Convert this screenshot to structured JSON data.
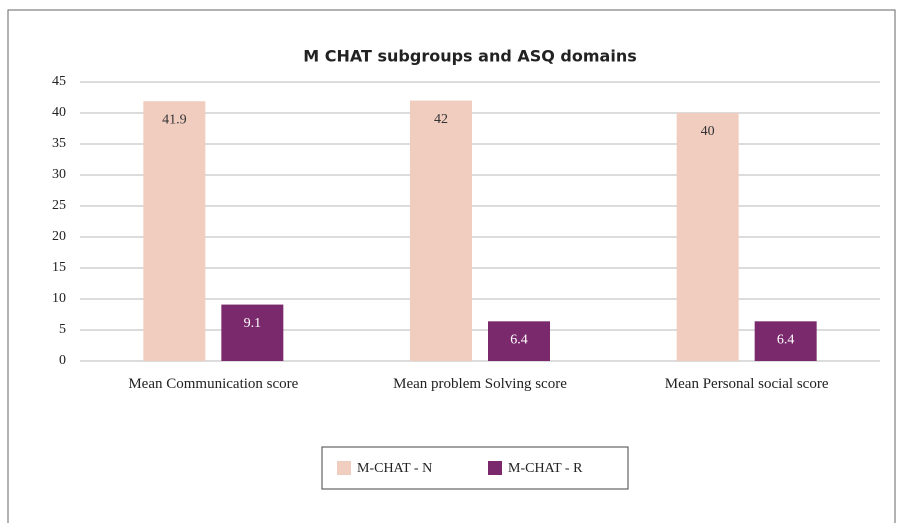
{
  "chart_data": {
    "type": "bar",
    "title": "M CHAT subgroups and ASQ domains",
    "categories": [
      "Mean Communication score",
      "Mean problem Solving score",
      "Mean Personal social score"
    ],
    "series": [
      {
        "name": "M-CHAT - N",
        "color": "#f1cdc0",
        "values": [
          41.9,
          42,
          40
        ]
      },
      {
        "name": "M-CHAT - R",
        "color": "#7a2a6c",
        "values": [
          9.1,
          6.4,
          6.4
        ]
      }
    ],
    "ylim": [
      0,
      45
    ],
    "yticks": [
      0,
      5,
      10,
      15,
      20,
      25,
      30,
      35,
      40,
      45
    ],
    "grid": true,
    "legend": "bottom"
  }
}
